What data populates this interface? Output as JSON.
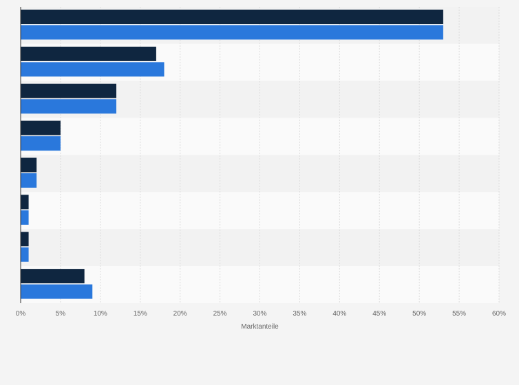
{
  "chart_data": {
    "type": "bar",
    "orientation": "horizontal",
    "categories": [
      "",
      "",
      "",
      "",
      "",
      "",
      "",
      ""
    ],
    "series": [
      {
        "color": "#0f2640",
        "values": [
          53,
          17,
          12,
          5,
          2,
          1,
          1,
          8
        ]
      },
      {
        "color": "#2a78dc",
        "values": [
          53,
          18,
          12,
          5,
          2,
          1,
          1,
          9
        ]
      }
    ],
    "xlabel": "Marktanteile",
    "ylabel": "",
    "xlim": [
      0,
      60
    ],
    "ticks": [
      0,
      5,
      10,
      15,
      20,
      25,
      30,
      35,
      40,
      45,
      50,
      55,
      60
    ],
    "tick_labels": [
      "0%",
      "5%",
      "10%",
      "15%",
      "20%",
      "25%",
      "30%",
      "35%",
      "40%",
      "45%",
      "50%",
      "55%",
      "60%"
    ],
    "grid": true,
    "legend": "none",
    "colors": {
      "band_light": "#fafafa",
      "band_dark": "#f2f2f2",
      "grid": "#dcdcdc",
      "axis": "#333333"
    }
  }
}
